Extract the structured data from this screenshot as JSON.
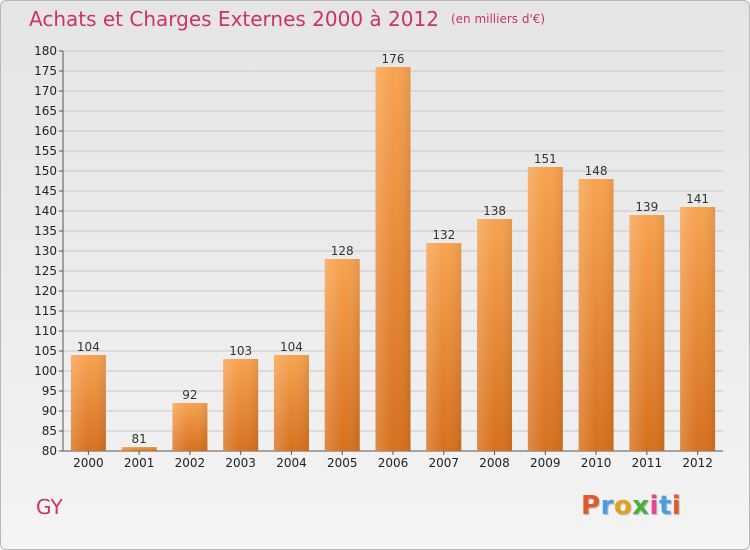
{
  "header": {
    "title": "Achats et Charges Externes 2000 à 2012",
    "unit": "(en milliers d'€)"
  },
  "footer": {
    "commune": "GY",
    "logo": "Proxiti",
    "logo_colors": [
      "#e05a2a",
      "#4a9ee0",
      "#e0a020",
      "#4cae3c",
      "#e04a8a",
      "#4a9ee0",
      "#e05a2a"
    ]
  },
  "colors": {
    "title": "#cc3366",
    "bar_top": "#f7a350",
    "bar_bottom": "#d7701e",
    "grid": "#c8c8c8"
  },
  "chart_data": {
    "type": "bar",
    "title": "Achats et Charges Externes 2000 à 2012",
    "subtitle": "(en milliers d'€)",
    "xlabel": "",
    "ylabel": "",
    "categories": [
      "2000",
      "2001",
      "2002",
      "2003",
      "2004",
      "2005",
      "2006",
      "2007",
      "2008",
      "2009",
      "2010",
      "2011",
      "2012"
    ],
    "values": [
      104,
      81,
      92,
      103,
      104,
      128,
      176,
      132,
      138,
      151,
      148,
      139,
      141
    ],
    "ylim": [
      80,
      180
    ],
    "yticks": [
      80,
      85,
      90,
      95,
      100,
      105,
      110,
      115,
      120,
      125,
      130,
      135,
      140,
      145,
      150,
      155,
      160,
      165,
      170,
      175,
      180
    ],
    "grid": true,
    "legend": "none",
    "data_labels": true
  }
}
